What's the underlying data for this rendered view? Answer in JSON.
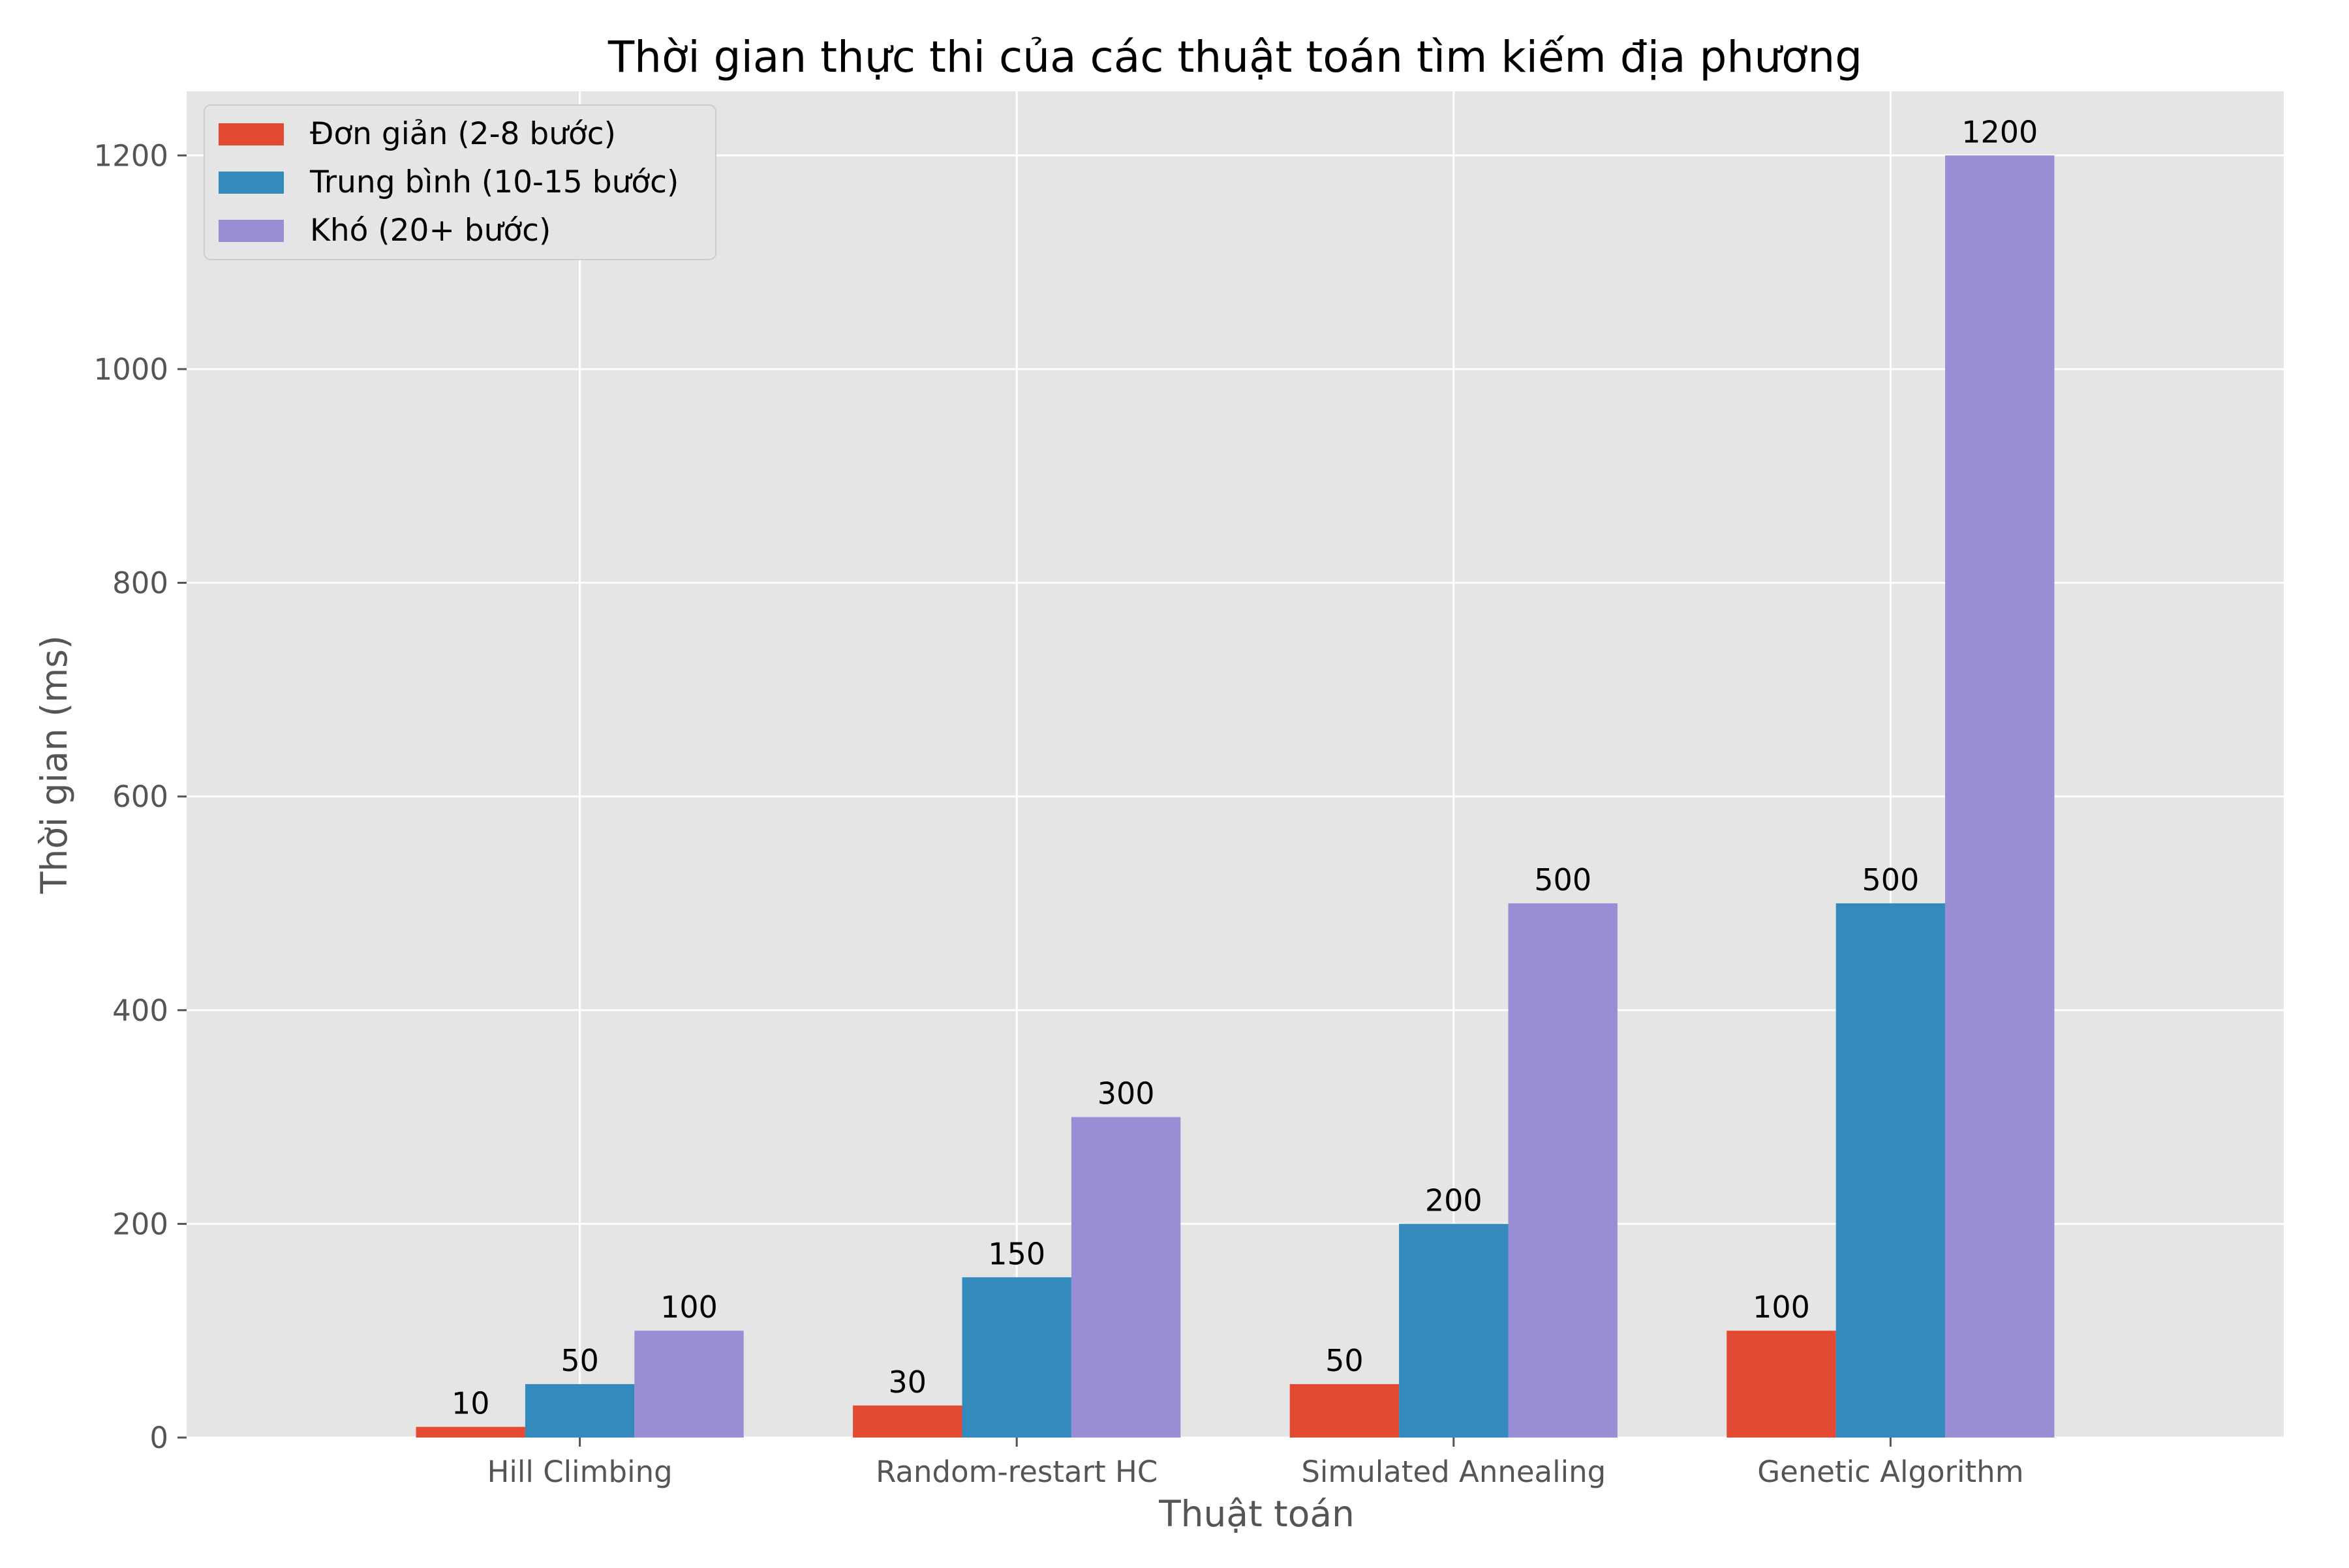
{
  "chart_data": {
    "type": "bar",
    "title": "Thời gian thực thi của các thuật toán tìm kiếm địa phương",
    "xlabel": "Thuật toán",
    "ylabel": "Thời gian (ms)",
    "categories": [
      "Hill Climbing",
      "Random-restart HC",
      "Simulated Annealing",
      "Genetic Algorithm"
    ],
    "series": [
      {
        "name": "Đơn giản (2-8 bước)",
        "values": [
          10,
          30,
          50,
          100
        ],
        "color": "#E24A33"
      },
      {
        "name": "Trung bình (10-15 bước)",
        "values": [
          50,
          150,
          200,
          500
        ],
        "color": "#348ABD"
      },
      {
        "name": "Khó (20+ bước)",
        "values": [
          100,
          300,
          500,
          1200
        ],
        "color": "#988ED5"
      }
    ],
    "ylim": [
      0,
      1260
    ],
    "yticks": [
      0,
      200,
      400,
      600,
      800,
      1000,
      1200
    ],
    "grid": true,
    "legend_position": "top-left",
    "data_labels": true,
    "style": {
      "plot_background": "#E5E5E5",
      "grid_color": "#FFFFFF"
    }
  }
}
